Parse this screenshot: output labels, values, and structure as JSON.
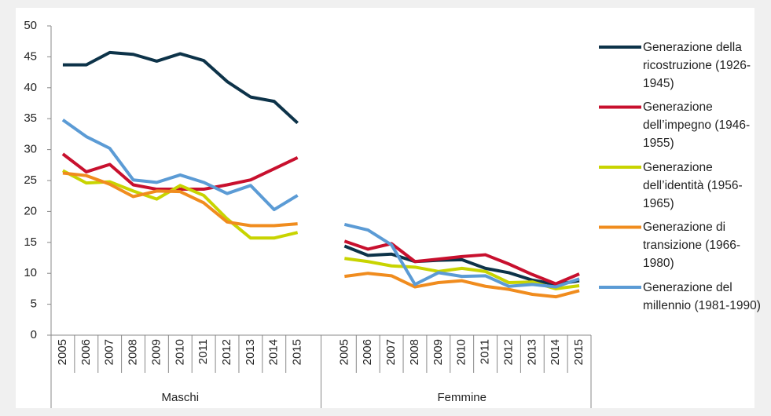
{
  "chart_data": {
    "type": "line",
    "groups": [
      {
        "name": "Maschi",
        "categories": [
          "2005",
          "2006",
          "2007",
          "2008",
          "2009",
          "2010",
          "2011",
          "2012",
          "2013",
          "2014",
          "2015"
        ]
      },
      {
        "name": "Femmine",
        "categories": [
          "2005",
          "2006",
          "2007",
          "2008",
          "2009",
          "2010",
          "2011",
          "2012",
          "2013",
          "2014",
          "2015"
        ]
      }
    ],
    "series": [
      {
        "name": "Generazione della ricostruzione (1926-1945)",
        "color": "#0d3349",
        "values": [
          43.7,
          43.7,
          45.7,
          45.4,
          44.3,
          45.5,
          44.4,
          41,
          38.5,
          37.8,
          34.3,
          14.4,
          12.9,
          13.1,
          11.9,
          12.1,
          12.2,
          10.8,
          10.1,
          8.9,
          8.2,
          8.8
        ]
      },
      {
        "name": "Generazione dell’impegno (1946-1955)",
        "color": "#c8102e",
        "values": [
          29.3,
          26.4,
          27.6,
          24.3,
          23.6,
          23.6,
          23.6,
          24.3,
          25.1,
          26.9,
          28.7,
          15.2,
          13.9,
          14.8,
          11.9,
          12.3,
          12.7,
          13.0,
          11.5,
          9.8,
          8.3,
          9.9
        ]
      },
      {
        "name": "Generazione dell’identità  (1956-1965)",
        "color": "#c8d400",
        "values": [
          26.6,
          24.6,
          24.8,
          23.3,
          22.0,
          24.2,
          22.6,
          18.8,
          15.7,
          15.7,
          16.6,
          12.4,
          11.9,
          11.2,
          11.0,
          10.3,
          10.8,
          10.3,
          8.5,
          8.6,
          7.5,
          8.0
        ]
      },
      {
        "name": "Generazione di transizione (1966-1980)",
        "color": "#f08c1e",
        "values": [
          26.2,
          25.8,
          24.4,
          22.4,
          23.3,
          23.2,
          21.4,
          18.3,
          17.7,
          17.7,
          18.0,
          9.5,
          10.0,
          9.6,
          7.8,
          8.5,
          8.8,
          7.9,
          7.4,
          6.6,
          6.2,
          7.2
        ]
      },
      {
        "name": "Generazione del millennio (1981-1990)",
        "color": "#5b9bd5",
        "values": [
          34.8,
          32.1,
          30.2,
          25.1,
          24.7,
          25.9,
          24.7,
          22.9,
          24.2,
          20.3,
          22.6,
          17.9,
          17.0,
          14.6,
          8.2,
          10.1,
          9.5,
          9.6,
          7.9,
          8.2,
          7.8,
          9.1
        ]
      }
    ],
    "ylim": [
      0,
      50
    ],
    "yticks": [
      0,
      5,
      10,
      15,
      20,
      25,
      30,
      35,
      40,
      45,
      50
    ]
  }
}
